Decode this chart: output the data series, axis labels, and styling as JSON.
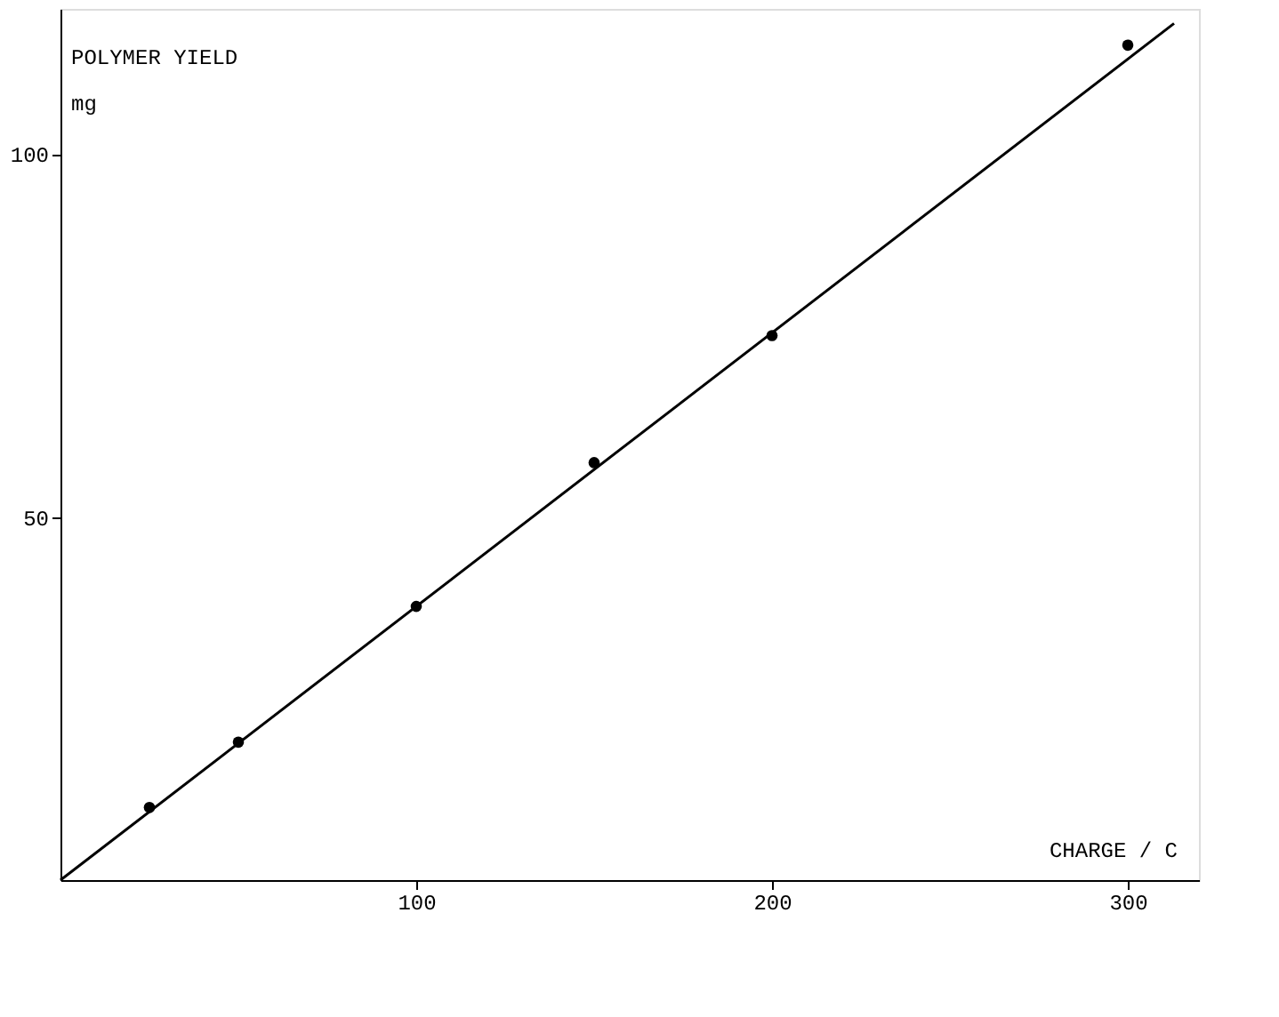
{
  "chart_data": {
    "type": "scatter",
    "xlabel": "CHARGE / C",
    "ylabel": "POLYMER YIELD\nmg",
    "xlim": [
      0,
      320
    ],
    "ylim": [
      0,
      120
    ],
    "xticks": [
      100,
      200,
      300
    ],
    "yticks": [
      50,
      100
    ],
    "grid": false,
    "series": [
      {
        "color": "#000000",
        "marker": "circle",
        "x": [
          25,
          50,
          100,
          150,
          200,
          300
        ],
        "values": [
          10,
          19,
          37.7,
          57.5,
          75,
          115
        ]
      },
      {
        "type": "line",
        "color": "#000000",
        "x": [
          0,
          313
        ],
        "values": [
          0,
          118
        ],
        "line_style": "solid",
        "marker": "none"
      }
    ]
  }
}
